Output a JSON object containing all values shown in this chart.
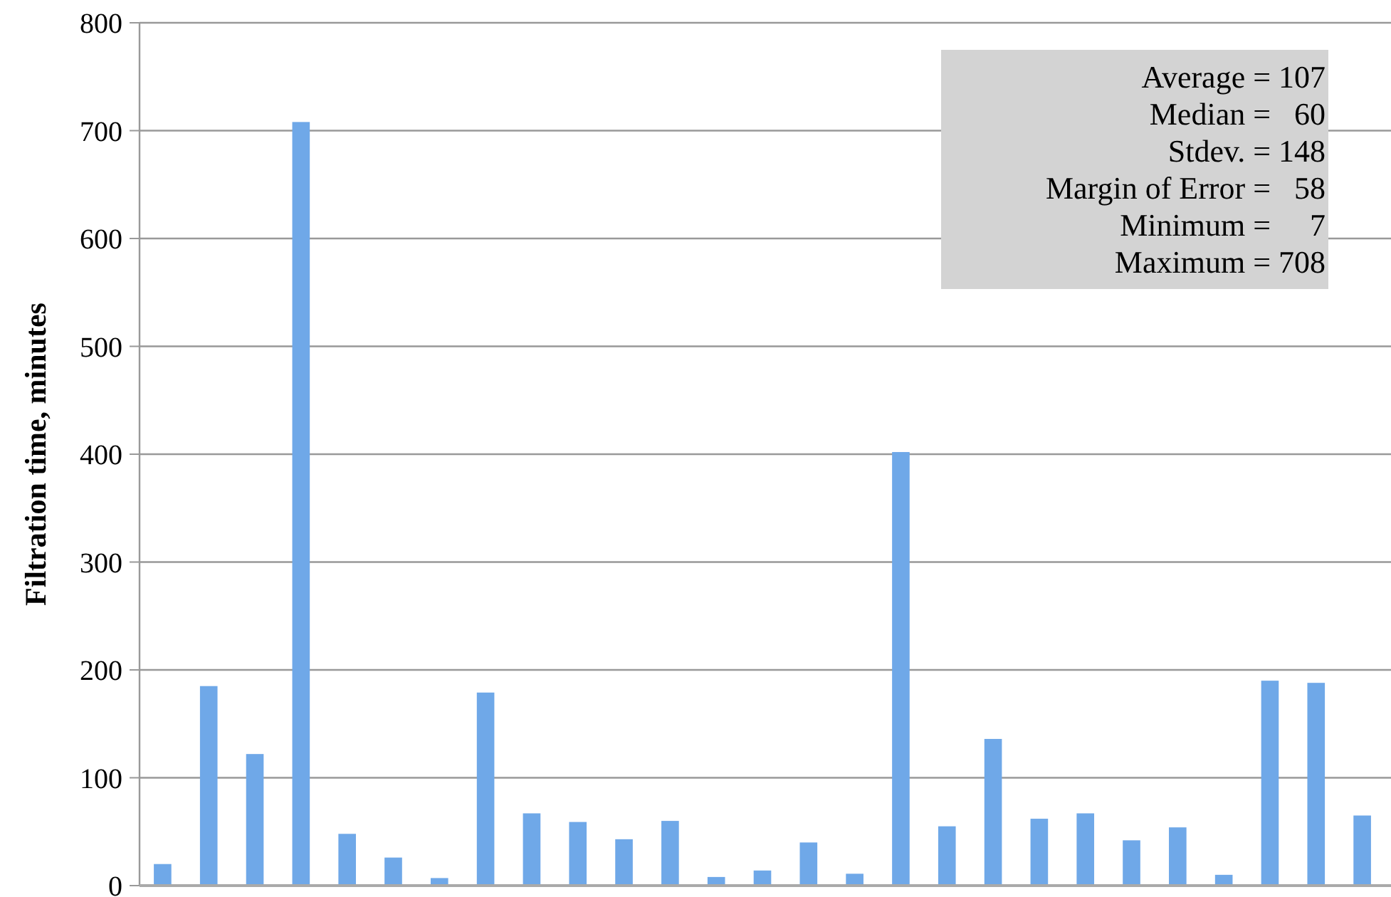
{
  "chart_data": {
    "type": "bar",
    "ylabel": "Filtration time, minutes",
    "categories": [
      null,
      null,
      null,
      null,
      null,
      null,
      null,
      null,
      null,
      null,
      null,
      null,
      null,
      null,
      null,
      null,
      null,
      null,
      null,
      null,
      null,
      null,
      null,
      null,
      null,
      null,
      null
    ],
    "values": [
      20,
      185,
      122,
      708,
      48,
      26,
      7,
      179,
      67,
      59,
      43,
      60,
      8,
      14,
      40,
      11,
      402,
      55,
      136,
      62,
      67,
      42,
      54,
      10,
      190,
      188,
      65
    ],
    "color": "#6fa8e8",
    "ylim": [
      0,
      800
    ],
    "yticks": [
      0,
      100,
      200,
      300,
      400,
      500,
      600,
      700,
      800
    ],
    "grid": "y",
    "annotations": [
      "Average = 107",
      "Median =   60",
      "Stdev. = 148",
      "Margin of Error =   58",
      "Minimum =     7",
      "Maximum = 708"
    ]
  }
}
